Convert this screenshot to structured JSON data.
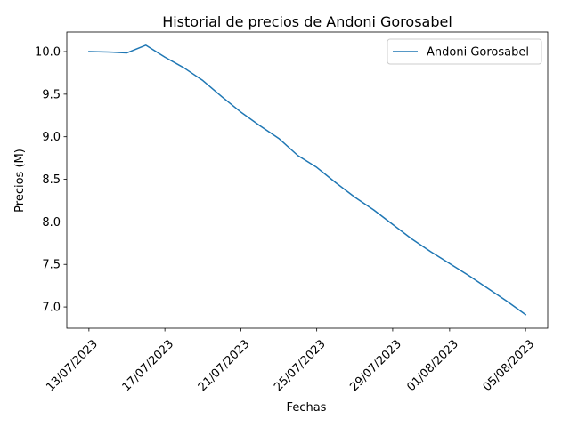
{
  "chart_data": {
    "type": "line",
    "title": "Historial de precios de Andoni Gorosabel",
    "xlabel": "Fechas",
    "ylabel": "Precios (M)",
    "x": [
      "2023-07-13",
      "2023-07-14",
      "2023-07-15",
      "2023-07-16",
      "2023-07-17",
      "2023-07-18",
      "2023-07-19",
      "2023-07-20",
      "2023-07-21",
      "2023-07-22",
      "2023-07-23",
      "2023-07-24",
      "2023-07-25",
      "2023-07-26",
      "2023-07-27",
      "2023-07-28",
      "2023-07-29",
      "2023-07-30",
      "2023-07-31",
      "2023-08-01",
      "2023-08-02",
      "2023-08-03",
      "2023-08-04",
      "2023-08-05"
    ],
    "series": [
      {
        "name": "Andoni Gorosabel",
        "color": "#1f77b4",
        "values": [
          10.0,
          9.995,
          9.985,
          10.075,
          9.935,
          9.81,
          9.66,
          9.47,
          9.29,
          9.13,
          8.98,
          8.78,
          8.64,
          8.46,
          8.29,
          8.14,
          7.97,
          7.8,
          7.65,
          7.51,
          7.37,
          7.22,
          7.07,
          6.91
        ]
      }
    ],
    "xticks": [
      "2023-07-13",
      "2023-07-17",
      "2023-07-21",
      "2023-07-25",
      "2023-07-29",
      "2023-08-01",
      "2023-08-05"
    ],
    "xtick_labels": [
      "13/07/2023",
      "17/07/2023",
      "21/07/2023",
      "25/07/2023",
      "29/07/2023",
      "01/08/2023",
      "05/08/2023"
    ],
    "yticks": [
      7.0,
      7.5,
      8.0,
      8.5,
      9.0,
      9.5,
      10.0
    ],
    "ytick_labels": [
      "7.0",
      "7.5",
      "8.0",
      "8.5",
      "9.0",
      "9.5",
      "10.0"
    ],
    "xlim": [
      "2023-07-11T20:00",
      "2023-08-06T04:00"
    ],
    "ylim": [
      6.75,
      10.23
    ],
    "grid": false,
    "legend_position": "top-right"
  }
}
